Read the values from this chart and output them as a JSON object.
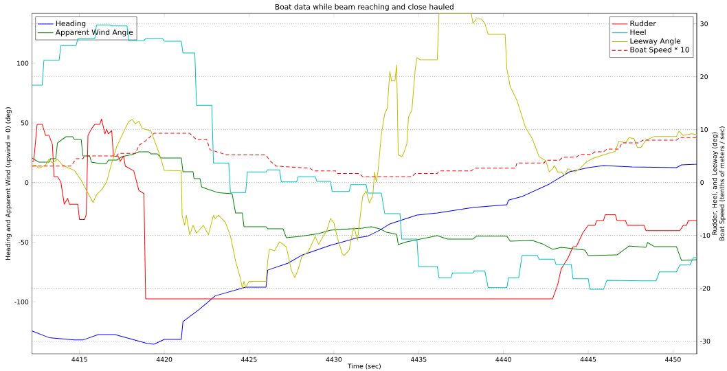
{
  "chart_data": {
    "type": "line",
    "title": "Boat data while beam reaching and close hauled",
    "xlabel": "Time (sec)",
    "ylabel": "Heading and Apparent Wind (upwind = 0) (deg)",
    "y2label": "Rudder, Heel, and Leeway (deg) Boat Speed (tenths of meters / sec)",
    "xlim": [
      4412.2,
      4451.4
    ],
    "ylim": [
      -143.6,
      141.9
    ],
    "y2lim": [
      -32.4,
      32.0
    ],
    "xticks": [
      4415,
      4420,
      4425,
      4430,
      4435,
      4440,
      4445,
      4450
    ],
    "yticks": [
      -100,
      -50,
      0,
      50,
      100
    ],
    "y2ticks": [
      -30,
      -20,
      -10,
      0,
      10,
      20,
      30
    ],
    "grid": "y2",
    "legend": [
      "top left",
      "top right"
    ],
    "series": [
      {
        "name": "Heading",
        "color": "#0000ff",
        "axis": "y",
        "x": [
          4412.2,
          4413.2,
          4414.7,
          4415.2,
          4416.1,
          4417.1,
          4419.0,
          4419.4,
          4420.0,
          4421.0,
          4421.1,
          4422.1,
          4423.0,
          4424.8,
          4426.0,
          4426.1,
          4427.3,
          4428.1,
          4429.8,
          4431.4,
          4432.0,
          4432.7,
          4433.3,
          4434.9,
          4436.1,
          4438.2,
          4440.2,
          4440.3,
          4441.1,
          4442.7,
          4443.9,
          4445.0,
          4445.9,
          4447.6,
          4450.2,
          4450.5,
          4451.4
        ],
        "values": [
          -124.4,
          -130,
          -132,
          -132,
          -127.5,
          -127.5,
          -135,
          -135.5,
          -131.5,
          -131.5,
          -116.6,
          -106,
          -95,
          -87.7,
          -87.7,
          -73.4,
          -67.6,
          -61,
          -52.6,
          -46.3,
          -44.9,
          -40,
          -34.7,
          -27.3,
          -25.5,
          -20.9,
          -18.6,
          -14.7,
          -11.7,
          -1.3,
          9,
          12.5,
          14.2,
          13.1,
          12.5,
          14.8,
          15.4
        ]
      },
      {
        "name": "Apparent Wind Angle",
        "color": "#008000",
        "axis": "y",
        "x": [
          4412.2,
          4412.6,
          4413.2,
          4413.3,
          4413.6,
          4413.7,
          4414.2,
          4414.6,
          4414.7,
          4415.1,
          4415.2,
          4415.6,
          4415.7,
          4416.2,
          4416.6,
          4416.7,
          4417.2,
          4417.5,
          4418.1,
          4418.5,
          4419.1,
          4419.2,
          4419.6,
          4419.8,
          4421.0,
          4421.1,
          4421.7,
          4421.75,
          4422.1,
          4422.2,
          4422.6,
          4423.2,
          4424.0,
          4424.2,
          4424.6,
          4424.7,
          4426.0,
          4426.1,
          4427.0,
          4427.2,
          4428.1,
          4429.1,
          4429.8,
          4431.7,
          4432.2,
          4432.7,
          4433.1,
          4433.7,
          4433.8,
          4434.3,
          4434.9,
          4436.1,
          4436.7,
          4438.2,
          4438.4,
          4440.2,
          4440.4,
          4441.7,
          4442.3,
          4442.9,
          4443.4,
          4444.8,
          4445.0,
          4446.7,
          4447.4,
          4448.4,
          4448.5,
          4448.9,
          4450.2,
          4450.5,
          4451.4
        ],
        "values": [
          20.6,
          17.1,
          17.1,
          20,
          20,
          33.2,
          38.4,
          38.4,
          36.1,
          36.1,
          22.3,
          22.3,
          17.1,
          16,
          16,
          18.8,
          18.8,
          21.7,
          23.4,
          25.7,
          25.7,
          24,
          24,
          20.6,
          20.6,
          9,
          9,
          3.3,
          3.3,
          -3.6,
          -5.8,
          -8.6,
          -9.4,
          -25.5,
          -25.5,
          -37,
          -37,
          -38.8,
          -38.8,
          -46.3,
          -45,
          -42.8,
          -39.9,
          -38.2,
          -37,
          -38.8,
          -41.6,
          -43.4,
          -52,
          -49.7,
          -48,
          -44.5,
          -47.4,
          -47.4,
          -45,
          -45,
          -49.1,
          -48.6,
          -51.4,
          -56,
          -54.3,
          -56.6,
          -61.2,
          -60.7,
          -53.2,
          -54.3,
          -50.3,
          -53.7,
          -53.7,
          -65.3,
          -64.7
        ]
      },
      {
        "name": "Rudder",
        "color": "#ff0000",
        "axis": "y2",
        "x": [
          4412.2,
          4412.3,
          4412.5,
          4412.8,
          4413.0,
          4413.2,
          4413.4,
          4413.5,
          4413.7,
          4413.9,
          4414.1,
          4414.3,
          4414.4,
          4414.9,
          4415.0,
          4415.3,
          4415.4,
          4415.5,
          4415.7,
          4415.9,
          4416.2,
          4416.3,
          4416.5,
          4416.6,
          4416.7,
          4416.9,
          4417.0,
          4417.3,
          4417.4,
          4417.6,
          4417.7,
          4418.2,
          4418.5,
          4418.8,
          4418.9,
          4442.9,
          4443.2,
          4443.4,
          4443.8,
          4444.1,
          4444.3,
          4444.7,
          4445.0,
          4445.4,
          4445.5,
          4445.9,
          4446.0,
          4446.6,
          4446.7,
          4447.2,
          4447.3,
          4448.3,
          4448.4,
          4450.4,
          4450.6,
          4450.8,
          4450.9,
          4451.4
        ],
        "values": [
          4.0,
          4.0,
          11,
          11,
          8.9,
          8.9,
          7.2,
          1.1,
          1.1,
          0.1,
          -4.1,
          -3.0,
          -4.1,
          -4.1,
          -7.0,
          -7.0,
          -6.0,
          8.9,
          10.1,
          11,
          11,
          12.0,
          9.2,
          10.1,
          9.2,
          9.8,
          5.0,
          4.9,
          4.0,
          5.0,
          3.1,
          2.2,
          -1.5,
          -2.1,
          -22.0,
          -22.0,
          -19.3,
          -16.4,
          -14.3,
          -12.2,
          -12.1,
          -9.4,
          -8.1,
          -8.1,
          -7.2,
          -7.2,
          -6.1,
          -6.1,
          -7.2,
          -7.2,
          -8.1,
          -8.1,
          -9.1,
          -9.1,
          -8.1,
          -8.1,
          -7.2,
          -7.2
        ]
      },
      {
        "name": "Heel",
        "color": "#00bfbf",
        "axis": "y2",
        "x": [
          4412.2,
          4412.8,
          4412.9,
          4413.8,
          4413.9,
          4414.8,
          4414.9,
          4415.9,
          4416.0,
          4416.8,
          4416.9,
          4417.8,
          4417.9,
          4418.8,
          4418.9,
          4419.9,
          4420.0,
          4421.0,
          4421.1,
          4421.8,
          4421.9,
          4422.8,
          4422.9,
          4423.8,
          4423.9,
          4424.8,
          4424.9,
          4426.0,
          4426.1,
          4426.8,
          4426.9,
          4427.8,
          4427.9,
          4428.9,
          4429.0,
          4429.8,
          4429.9,
          4430.9,
          4431.0,
          4431.9,
          4432.0,
          4432.8,
          4433.0,
          4433.9,
          4434.0,
          4434.9,
          4435.0,
          4436.1,
          4436.2,
          4436.9,
          4437.0,
          4438.2,
          4438.3,
          4438.9,
          4439.1,
          4440.2,
          4440.3,
          4440.9,
          4441.1,
          4442.0,
          4442.1,
          4443.0,
          4443.1,
          4444.0,
          4444.1,
          4445.0,
          4445.1,
          4445.9,
          4446.1,
          4448.2,
          4449.0,
          4449.2,
          4450.2,
          4450.4,
          4451.0,
          4451.2,
          4451.4
        ],
        "values": [
          18.4,
          18.4,
          23.1,
          23.1,
          25.9,
          25.9,
          27.2,
          27.2,
          29.8,
          29.8,
          29.6,
          29.6,
          26.8,
          26.8,
          27.2,
          27.2,
          26.7,
          26.7,
          24.5,
          24.5,
          14.6,
          14.6,
          3.7,
          3.7,
          -1.9,
          -1.9,
          2.0,
          2.0,
          2.4,
          2.4,
          0.1,
          0.1,
          1.1,
          1.1,
          0.2,
          0.2,
          -1.7,
          -1.7,
          -0.4,
          -0.4,
          -2.0,
          -2.0,
          -5.9,
          -5.9,
          -10.7,
          -10.7,
          -15.9,
          -15.9,
          -18.0,
          -18.0,
          -17.1,
          -17.1,
          -16.7,
          -16.7,
          -19.9,
          -19.9,
          -18.0,
          -18.0,
          -13.8,
          -13.8,
          -14.5,
          -14.5,
          -15.5,
          -15.5,
          -18.2,
          -18.2,
          -20.2,
          -20.2,
          -18.5,
          -18.6,
          -18.6,
          -16.9,
          -16.9,
          -15.6,
          -15.6,
          -14.2,
          -14.2
        ]
      },
      {
        "name": "Leeway Angle",
        "color": "#bfbf00",
        "axis": "y2",
        "x": [
          4412.2,
          4412.4,
          4412.6,
          4413.0,
          4413.2,
          4413.4,
          4413.7,
          4414.0,
          4414.3,
          4414.7,
          4415.1,
          4415.4,
          4415.8,
          4416.0,
          4416.3,
          4416.6,
          4416.9,
          4417.2,
          4417.5,
          4417.9,
          4418.1,
          4418.3,
          4418.5,
          4418.7,
          4419.2,
          4419.4,
          4419.7,
          4420.0,
          4421.0,
          4421.05,
          4421.2,
          4421.3,
          4421.5,
          4421.7,
          4421.9,
          4422.3,
          4422.6,
          4422.9,
          4423.0,
          4423.2,
          4423.6,
          4423.9,
          4424.2,
          4424.5,
          4424.6,
          4424.7,
          4424.8,
          4425.0,
          4426.0,
          4426.1,
          4426.2,
          4426.5,
          4426.8,
          4427.2,
          4427.5,
          4427.7,
          4427.9,
          4428.1,
          4428.5,
          4428.9,
          4429.1,
          4429.6,
          4429.8,
          4430.0,
          4430.2,
          4430.5,
          4430.6,
          4430.9,
          4431.1,
          4431.2,
          4431.4,
          4431.5,
          4431.7,
          4431.9,
          4432.1,
          4432.3,
          4432.4,
          4432.5,
          4432.6,
          4432.8,
          4433.0,
          4433.15,
          4433.3,
          4433.4,
          4433.6,
          4433.7,
          4433.8,
          4434.0,
          4434.1,
          4434.3,
          4434.4,
          4434.6,
          4434.8,
          4434.9,
          4435.1,
          4436.1,
          4436.2,
          4437.0,
          4438.1,
          4438.2,
          4438.4,
          4438.7,
          4438.9,
          4439.1,
          4440.1,
          4440.2,
          4440.4,
          4440.8,
          4441.3,
          4441.7,
          4442.1,
          4442.5,
          4442.7,
          4442.9,
          4443.0,
          4443.2,
          4443.4,
          4443.6,
          4443.8,
          4444.2,
          4444.5,
          4444.9,
          4445.3,
          4445.9,
          4446.6,
          4446.8,
          4447.2,
          4447.4,
          4447.7,
          4447.9,
          4448.1,
          4448.4,
          4448.9,
          4450.2,
          4450.35,
          4450.6,
          4451.1,
          4451.4
        ],
        "values": [
          3.1,
          3.3,
          2.7,
          3.3,
          4.4,
          3.7,
          4.4,
          3.3,
          2.8,
          2.3,
          0.4,
          -1.4,
          -3.8,
          -2.3,
          -1.4,
          0.1,
          3.7,
          6.8,
          8.9,
          11.5,
          11.9,
          11.1,
          11.6,
          10.2,
          9.8,
          8.1,
          5.5,
          2.3,
          2.2,
          -6.2,
          -8.1,
          -6.2,
          -9.9,
          -8.1,
          -9.6,
          -8.1,
          -9.9,
          -6.2,
          -6.8,
          -6.2,
          -7.5,
          -10.1,
          -14.8,
          -18.3,
          -20.0,
          -18.7,
          -19.8,
          -18.7,
          -18.7,
          -14.8,
          -12.6,
          -12.9,
          -11.2,
          -12.2,
          -16.7,
          -18.0,
          -16.4,
          -14.1,
          -13.0,
          -10.2,
          -11.7,
          -8.9,
          -6.8,
          -7.6,
          -10.4,
          -13.5,
          -13.8,
          -12.8,
          -9.4,
          -8.6,
          -10.9,
          -7.8,
          -2.6,
          -1.6,
          -3.9,
          -2.4,
          2.0,
          0.1,
          2.0,
          9.1,
          13.0,
          14.0,
          21.0,
          19.2,
          19.2,
          22.2,
          5.2,
          4.9,
          5.4,
          7.2,
          12.4,
          13.7,
          21.5,
          23.6,
          23.2,
          23.2,
          32.0,
          null,
          32.0,
          30.1,
          30.9,
          30.9,
          30.1,
          28.0,
          28.0,
          21.5,
          18.1,
          15.5,
          10.4,
          8.3,
          4.9,
          4.1,
          2.0,
          2.6,
          3.2,
          2.0,
          2.0,
          1.4,
          2.6,
          2.0,
          2.6,
          3.9,
          4.6,
          5.2,
          5.9,
          7.8,
          7.5,
          8.5,
          8.3,
          6.6,
          6.6,
          8.0,
          8.7,
          8.7,
          9.7,
          8.9,
          9.2,
          9.0
        ]
      },
      {
        "name": "Boat Speed * 10",
        "color": "#ff0000",
        "axis": "y2",
        "line_style": "dashed",
        "x": [
          4412.2,
          4414.5,
          4414.8,
          4415.2,
          4415.3,
          4417.2,
          4417.3,
          4418.3,
          4418.5,
          4418.9,
          4419.4,
          4421.5,
          4421.9,
          4422.5,
          4422.7,
          4423.7,
          4426.0,
          4426.2,
          4426.6,
          4428.6,
          4428.8,
          4430.1,
          4430.2,
          4431.5,
          4431.7,
          4434.6,
          4434.8,
          4436.1,
          4436.2,
          4438.1,
          4438.3,
          4440.7,
          4440.8,
          4442.4,
          4442.5,
          4443.3,
          4443.5,
          4444.3,
          4444.5,
          4445.2,
          4445.4,
          4445.9,
          4446.1,
          4446.8,
          4447.0,
          4448.0,
          4448.2,
          4450.2,
          4450.4,
          4451.4
        ],
        "values": [
          3.1,
          3.1,
          4.5,
          4.5,
          5.0,
          5.0,
          5.5,
          5.5,
          7.0,
          7.9,
          9.3,
          9.3,
          8.1,
          8.1,
          6.2,
          5.2,
          5.2,
          4.2,
          3.1,
          2.7,
          2.2,
          2.2,
          1.7,
          1.7,
          1.1,
          1.1,
          1.7,
          1.7,
          2.2,
          2.2,
          2.7,
          2.7,
          3.7,
          3.7,
          4.2,
          4.2,
          4.8,
          4.8,
          5.3,
          5.3,
          5.8,
          5.8,
          6.3,
          6.3,
          7.5,
          7.5,
          8.0,
          8.0,
          8.5,
          8.5
        ]
      }
    ]
  }
}
